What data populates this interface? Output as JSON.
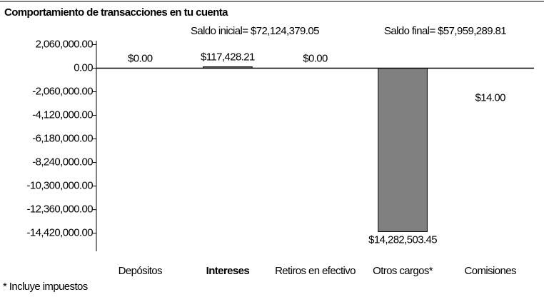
{
  "chart_data": {
    "type": "bar",
    "title": "Comportamiento de transacciones en tu cuenta",
    "annotations": [
      "Saldo inicial= $72,124,379.05",
      "Saldo final= $57,959,289.81"
    ],
    "footnote": "* Incluye impuestos",
    "categories": [
      "Depósitos",
      "Intereses",
      "Retiros en efectivo",
      "Otros cargos*",
      "Comisiones"
    ],
    "values": [
      0,
      117428.21,
      0,
      -14282503.45,
      -14
    ],
    "value_labels": [
      "$0.00",
      "$117,428.21",
      "$0.00",
      "$14,282,503.45",
      "$14.00"
    ],
    "color": "#808080",
    "ylim": [
      -16000000,
      2400000
    ],
    "yticks": [
      {
        "value": 2060000,
        "label": "2,060,000.00"
      },
      {
        "value": 0,
        "label": "0.00"
      },
      {
        "value": -2060000,
        "label": "-2,060,000.00"
      },
      {
        "value": -4120000,
        "label": "-4,120,000.00"
      },
      {
        "value": -6180000,
        "label": "-6,180,000.00"
      },
      {
        "value": -8240000,
        "label": "-8,240,000.00"
      },
      {
        "value": -10300000,
        "label": "-10,300,000.00"
      },
      {
        "value": -12360000,
        "label": "-12,360,000.00"
      },
      {
        "value": -14420000,
        "label": "-14,420,000.00"
      }
    ],
    "grid": false
  }
}
